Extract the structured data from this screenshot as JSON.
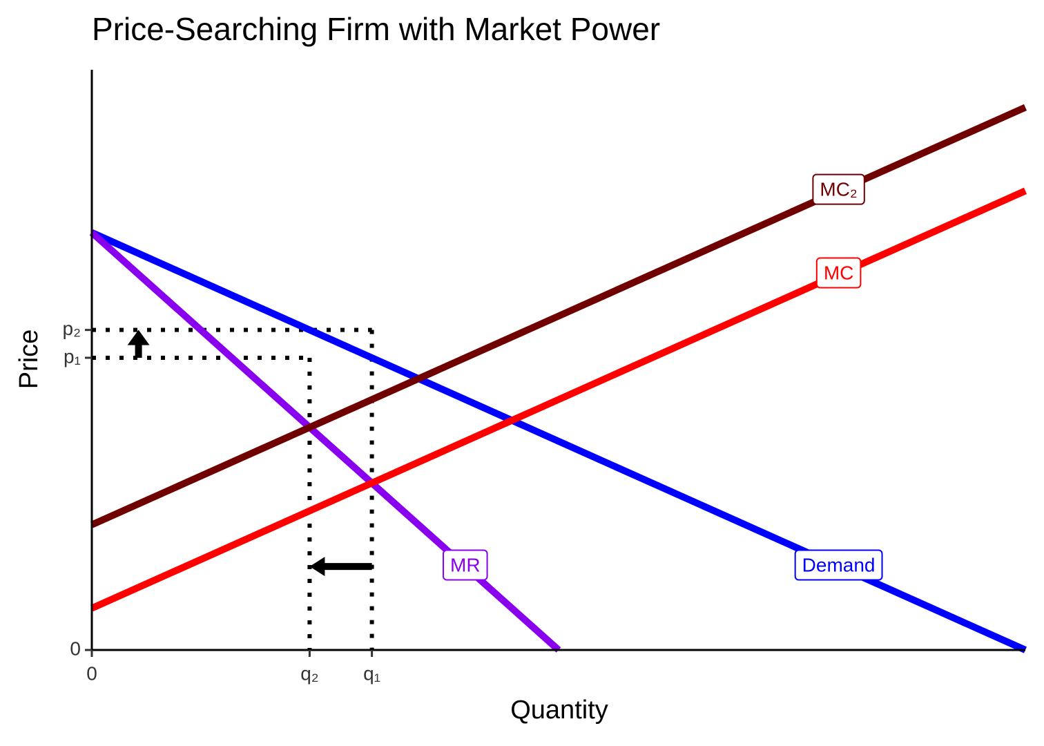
{
  "chart_data": {
    "type": "line",
    "title": "Price-Searching Firm with Market Power",
    "xlabel": "Quantity",
    "ylabel": "Price",
    "xlim": [
      0,
      10
    ],
    "ylim": [
      0,
      13.9
    ],
    "xticks": [
      0,
      {
        "value": 2.333,
        "label": "q₂"
      },
      {
        "value": 3,
        "label": "q₁"
      }
    ],
    "yticks": [
      0,
      {
        "value": 7,
        "label": "p₁"
      },
      {
        "value": 7.667,
        "label": "p₂"
      }
    ],
    "series": [
      {
        "name": "Demand",
        "color": "#0000ff",
        "x": [
          0,
          10
        ],
        "values": [
          10,
          0
        ]
      },
      {
        "name": "MR",
        "color": "#8800ee",
        "x": [
          0,
          5
        ],
        "values": [
          10,
          0
        ]
      },
      {
        "name": "MC",
        "color": "#ff0000",
        "x": [
          0,
          10
        ],
        "values": [
          1,
          11
        ]
      },
      {
        "name": "MC₂",
        "color": "#700000",
        "x": [
          0,
          10
        ],
        "values": [
          3,
          13
        ]
      }
    ]
  }
}
